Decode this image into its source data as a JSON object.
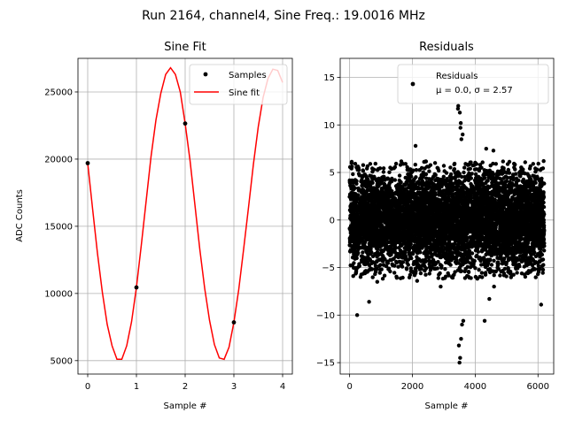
{
  "suptitle": "Run 2164, channel4, Sine Freq.: 19.0016 MHz",
  "chart_data": [
    {
      "type": "line",
      "title": "Sine Fit",
      "xlabel": "Sample #",
      "ylabel": "ADC Counts",
      "xlim": [
        -0.2,
        4.2
      ],
      "ylim": [
        4000,
        27500
      ],
      "xticks": [
        0,
        1,
        2,
        3,
        4
      ],
      "yticks": [
        5000,
        10000,
        15000,
        20000,
        25000
      ],
      "grid": true,
      "legend_position": "top-right",
      "series": [
        {
          "name": "Samples",
          "kind": "points",
          "color": "#000000",
          "x": [
            0,
            1,
            2,
            3
          ],
          "y": [
            19700,
            10450,
            22650,
            7850
          ]
        },
        {
          "name": "Sine fit",
          "kind": "line",
          "color": "#ff0000",
          "x": [
            0.0,
            0.1,
            0.2,
            0.3,
            0.4,
            0.5,
            0.6,
            0.7,
            0.8,
            0.9,
            1.0,
            1.1,
            1.2,
            1.3,
            1.4,
            1.5,
            1.6,
            1.7,
            1.8,
            1.9,
            2.0,
            2.1,
            2.2,
            2.3,
            2.4,
            2.5,
            2.6,
            2.7,
            2.8,
            2.9,
            3.0,
            3.1,
            3.2,
            3.3,
            3.4,
            3.5,
            3.6,
            3.7,
            3.8,
            3.9,
            4.0
          ],
          "y": [
            19700,
            16300,
            13000,
            10100,
            7700,
            6100,
            5100,
            5100,
            6100,
            7900,
            10450,
            13600,
            16900,
            20200,
            22900,
            24900,
            26300,
            26800,
            26300,
            25000,
            22650,
            19900,
            16600,
            13300,
            10400,
            8000,
            6200,
            5200,
            5100,
            6000,
            7850,
            10300,
            13300,
            16400,
            19600,
            22400,
            24600,
            26000,
            26700,
            26600,
            25700
          ]
        }
      ]
    },
    {
      "type": "scatter",
      "title": "Residuals",
      "xlabel": "Sample #",
      "ylabel": "",
      "xlim": [
        -300,
        6500
      ],
      "ylim": [
        -16.2,
        17
      ],
      "xticks": [
        0,
        2000,
        4000,
        6000
      ],
      "yticks": [
        -15,
        -10,
        -5,
        0,
        5,
        10,
        15
      ],
      "grid": true,
      "legend_position": "top-right",
      "legend_label": "Residuals",
      "legend_line2": "μ = 0.0, σ = 2.57",
      "stats": {
        "mu": 0.0,
        "sigma": 2.57
      },
      "n_samples": 6200,
      "color": "#000000",
      "outliers_x": [
        240,
        620,
        880,
        2100,
        2150,
        2900,
        3450,
        3460,
        3480,
        3500,
        3510,
        3520,
        3530,
        3540,
        3550,
        3560,
        3580,
        3600,
        3620,
        4300,
        4350,
        4450,
        4580,
        4600,
        6100,
        6180
      ],
      "outliers_y": [
        -10.0,
        -8.6,
        -6.5,
        7.8,
        -6.4,
        -7.0,
        11.7,
        12.0,
        -13.2,
        -15.0,
        11.3,
        -14.5,
        9.7,
        10.2,
        -12.5,
        8.5,
        -11.0,
        9.0,
        -10.6,
        -10.6,
        7.5,
        -8.3,
        7.3,
        -7.0,
        -8.9,
        6.2
      ]
    }
  ]
}
